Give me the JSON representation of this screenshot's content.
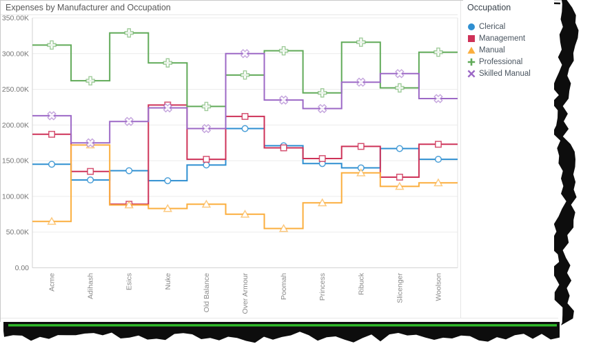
{
  "window": {
    "title": "Expenses by Manufacturer and Occupation"
  },
  "legend": {
    "title": "Occupation",
    "items": [
      {
        "label": "Clerical",
        "marker": "circle-icon",
        "color": "#2E8FD1"
      },
      {
        "label": "Management",
        "marker": "square-icon",
        "color": "#CE3258"
      },
      {
        "label": "Manual",
        "marker": "triangle-icon",
        "color": "#FBAE3D"
      },
      {
        "label": "Professional",
        "marker": "plus-icon",
        "color": "#60AA58"
      },
      {
        "label": "Skilled Manual",
        "marker": "x-icon",
        "color": "#9C68C6"
      }
    ]
  },
  "chart_data": {
    "type": "line",
    "subtype": "step",
    "title": "Expenses by Manufacturer and Occupation",
    "xlabel": "",
    "ylabel": "",
    "ylim": [
      0,
      350000
    ],
    "grid": "horizontal",
    "legend_position": "right",
    "legend_title": "Occupation",
    "categories": [
      "Acme",
      "Adihash",
      "Esics",
      "Nuke",
      "Old Balance",
      "Over Armour",
      "Poomah",
      "Princess",
      "Ribuck",
      "Slicenger",
      "Woolson"
    ],
    "y_ticks": [
      {
        "v": 0,
        "label": "0.00"
      },
      {
        "v": 50000,
        "label": "50.00K"
      },
      {
        "v": 100000,
        "label": "100.00K"
      },
      {
        "v": 150000,
        "label": "150.00K"
      },
      {
        "v": 200000,
        "label": "200.00K"
      },
      {
        "v": 250000,
        "label": "250.00K"
      },
      {
        "v": 300000,
        "label": "300.00K"
      },
      {
        "v": 350000,
        "label": "350.00K"
      }
    ],
    "series": [
      {
        "name": "Clerical",
        "color": "#2E8FD1",
        "marker": "circle",
        "values": [
          145000,
          123000,
          136000,
          122000,
          144000,
          195000,
          171000,
          146000,
          140000,
          167000,
          152000
        ]
      },
      {
        "name": "Management",
        "color": "#CE3258",
        "marker": "square",
        "values": [
          187000,
          135000,
          89000,
          228000,
          152000,
          212000,
          168000,
          153000,
          170000,
          127000,
          173000
        ]
      },
      {
        "name": "Manual",
        "color": "#FBAE3D",
        "marker": "triangle",
        "values": [
          65000,
          172000,
          88000,
          83000,
          89000,
          75000,
          55000,
          91000,
          133000,
          114000,
          119000
        ]
      },
      {
        "name": "Professional",
        "color": "#60AA58",
        "marker": "plus",
        "values": [
          312000,
          262000,
          329000,
          287000,
          226000,
          270000,
          304000,
          245000,
          316000,
          252000,
          302000
        ]
      },
      {
        "name": "Skilled Manual",
        "color": "#9C68C6",
        "marker": "x",
        "values": [
          213000,
          175000,
          205000,
          224000,
          195000,
          300000,
          235000,
          223000,
          260000,
          272000,
          237000
        ]
      }
    ]
  },
  "screenshot_effects": {
    "torn_edges": [
      "right",
      "bottom"
    ],
    "bottom_bar_color": "#0d0d0d",
    "bottom_green_line_color": "#2EB929"
  },
  "colors": {
    "grid": "#ebebeb",
    "axis": "#d2d2d2",
    "plot_border": "#e3e3e3",
    "y_label": "#757575",
    "x_label": "#8a8a8a",
    "window_border": "#c9c9c9"
  }
}
